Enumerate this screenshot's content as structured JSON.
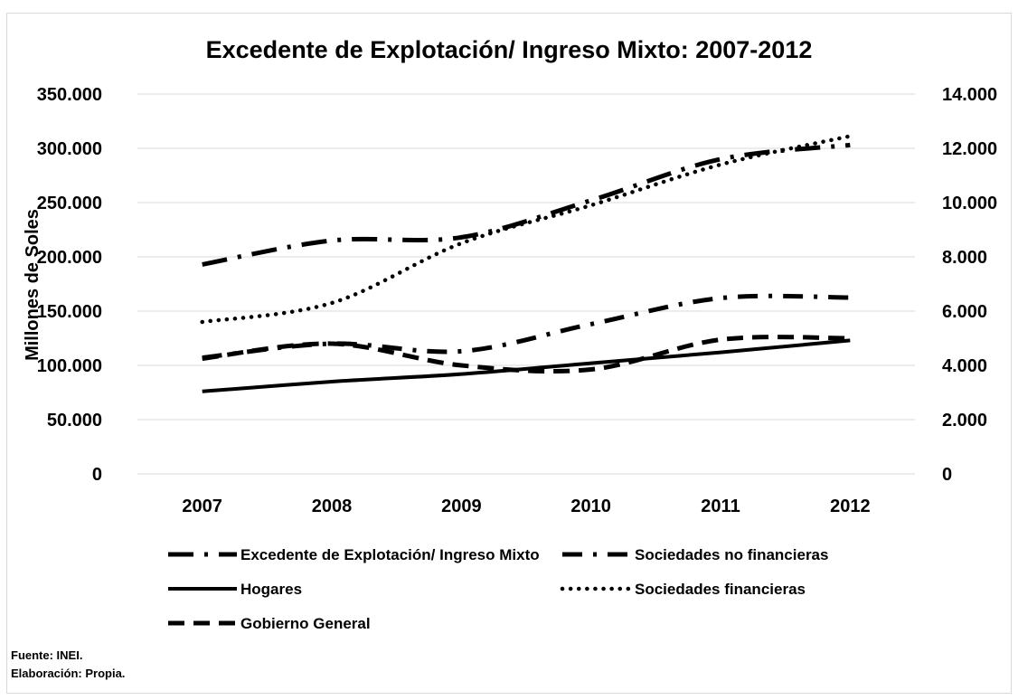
{
  "chart_data": {
    "type": "line",
    "title": "Excedente de Explotación/ Ingreso Mixto: 2007-2012",
    "ylabel": "Millones de Soles",
    "ylim": [
      0,
      350000
    ],
    "y2lim": [
      0,
      14000
    ],
    "y_ticks": [
      "350.000",
      "300.000",
      "250.000",
      "200.000",
      "150.000",
      "100.000",
      "50.000",
      "0"
    ],
    "y2_ticks": [
      "14.000",
      "12.000",
      "10.000",
      "8.000",
      "6.000",
      "4.000",
      "2.000",
      "0"
    ],
    "y_tick_values": [
      350000,
      300000,
      250000,
      200000,
      150000,
      100000,
      50000,
      0
    ],
    "y2_tick_values": [
      14000,
      12000,
      10000,
      8000,
      6000,
      4000,
      2000,
      0
    ],
    "categories": [
      "2007",
      "2008",
      "2009",
      "2010",
      "2011",
      "2012"
    ],
    "grid": true,
    "legend_position": "bottom",
    "series": [
      {
        "name": "Excedente de Explotación/ Ingreso Mixto",
        "axis": "left",
        "style": "long-dash-dot",
        "values": [
          193000,
          215000,
          218000,
          252000,
          290000,
          303000
        ]
      },
      {
        "name": "Sociedades no financieras",
        "axis": "left",
        "style": "dash-dot",
        "values": [
          107000,
          120000,
          113000,
          138000,
          162000,
          162500
        ]
      },
      {
        "name": "Hogares",
        "axis": "left",
        "style": "solid",
        "values": [
          76000,
          85000,
          92000,
          102000,
          112000,
          123000
        ]
      },
      {
        "name": "Sociedades financieras",
        "axis": "right",
        "style": "dotted",
        "values": [
          5600,
          6300,
          8500,
          9900,
          11400,
          12450
        ]
      },
      {
        "name": "Gobierno General",
        "axis": "right",
        "style": "dashed",
        "values": [
          4250,
          4800,
          4000,
          3850,
          4950,
          5000
        ]
      }
    ]
  },
  "footer": {
    "source": "Fuente: INEI.",
    "elaboration": "Elaboración: Propia."
  }
}
